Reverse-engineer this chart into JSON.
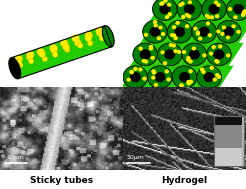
{
  "fig_width": 2.46,
  "fig_height": 1.89,
  "dpi": 100,
  "bg_color": "#ffffff",
  "tube_green_dark": "#008000",
  "tube_green_mid": "#22cc00",
  "tube_green_bright": "#44ff00",
  "tube_yellow": "#ffee00",
  "tube_black": "#000000",
  "label_sticky": "Sticky tubes",
  "label_hydrogel": "Hydrogel",
  "scalebar_left": "10μm",
  "scalebar_right": "50μm",
  "label_fontsize": 6.5,
  "scalebar_fontsize": 4.5
}
